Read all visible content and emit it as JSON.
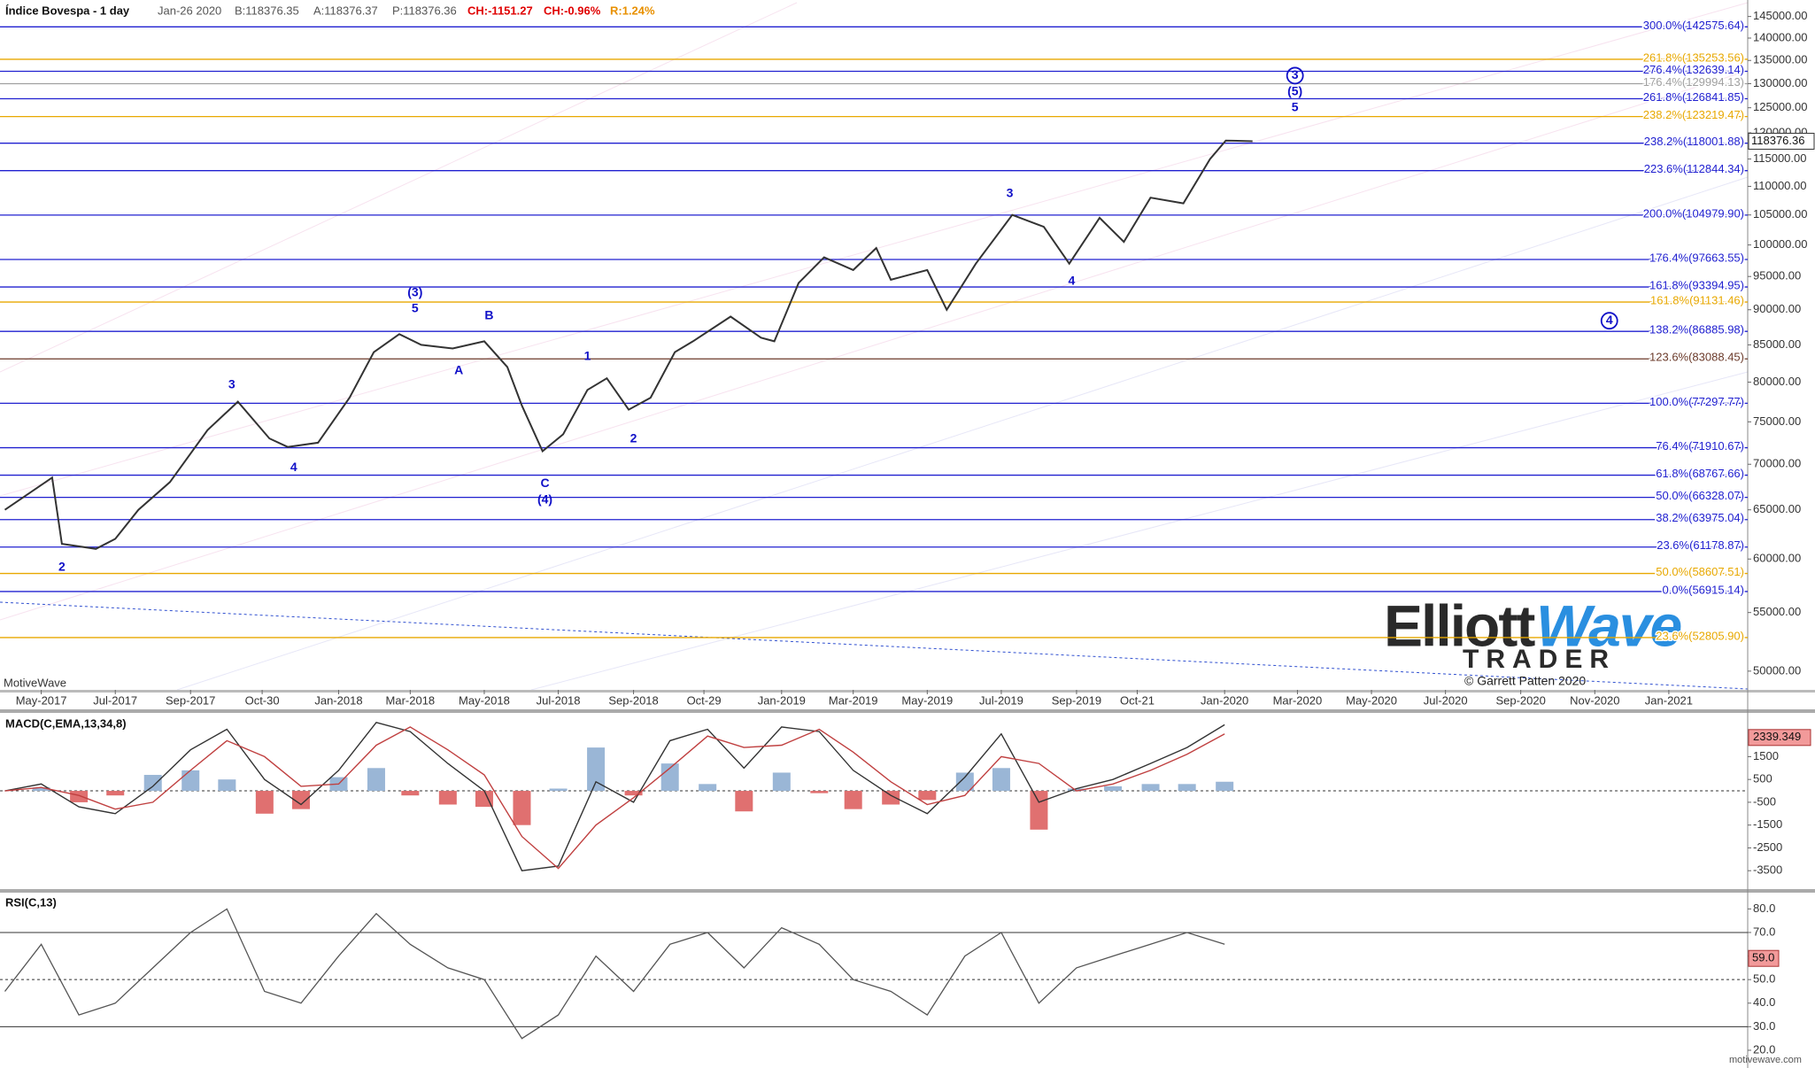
{
  "chart_data": [
    {
      "type": "price",
      "title": "Índice Bovespa - 1 day",
      "header": {
        "date": "Jan-26 2020",
        "bid": "B:118376.35",
        "ask": "A:118376.37",
        "price": "P:118376.36",
        "change": "CH:-1151.27",
        "change_pct": "CH:-0.96%",
        "range": "R:1.24%"
      },
      "color": "#333333",
      "log_scale": true,
      "x": [
        "2017-04-01",
        "2017-05-10",
        "2017-05-18",
        "2017-06-15",
        "2017-07-01",
        "2017-07-20",
        "2017-08-15",
        "2017-09-15",
        "2017-10-10",
        "2017-11-05",
        "2017-11-20",
        "2017-12-15",
        "2018-01-10",
        "2018-01-30",
        "2018-02-20",
        "2018-03-10",
        "2018-04-05",
        "2018-05-01",
        "2018-05-20",
        "2018-06-01",
        "2018-06-18",
        "2018-07-05",
        "2018-07-25",
        "2018-08-10",
        "2018-08-28",
        "2018-09-15",
        "2018-10-05",
        "2018-10-20",
        "2018-11-20",
        "2018-12-15",
        "2018-12-26",
        "2019-01-15",
        "2019-02-05",
        "2019-03-01",
        "2019-03-20",
        "2019-04-01",
        "2019-05-01",
        "2019-05-17",
        "2019-06-10",
        "2019-07-10",
        "2019-08-05",
        "2019-08-26",
        "2019-09-20",
        "2019-10-10",
        "2019-11-01",
        "2019-11-28",
        "2019-12-20",
        "2020-01-02",
        "2020-01-24"
      ],
      "values": [
        65000,
        68500,
        61500,
        61000,
        62000,
        65000,
        68000,
        74000,
        77500,
        73000,
        72000,
        72500,
        78000,
        84000,
        86500,
        85000,
        84500,
        85500,
        82000,
        77000,
        71500,
        73500,
        79000,
        80500,
        76500,
        78000,
        84000,
        85500,
        89000,
        86000,
        85500,
        94000,
        98000,
        96000,
        99500,
        94500,
        96000,
        90000,
        97000,
        105000,
        103000,
        97000,
        104500,
        100500,
        108000,
        107000,
        115000,
        118500,
        118376
      ],
      "last_value": 118376.36,
      "xlim": [
        "2017-03-28",
        "2021-03-07"
      ],
      "xticks": [
        {
          "value": "2017-05-01",
          "label": "May-2017"
        },
        {
          "value": "2017-07-01",
          "label": "Jul-2017"
        },
        {
          "value": "2017-09-01",
          "label": "Sep-2017"
        },
        {
          "value": "2017-10-30",
          "label": "Oct-30"
        },
        {
          "value": "2018-01-01",
          "label": "Jan-2018"
        },
        {
          "value": "2018-03-01",
          "label": "Mar-2018"
        },
        {
          "value": "2018-05-01",
          "label": "May-2018"
        },
        {
          "value": "2018-07-01",
          "label": "Jul-2018"
        },
        {
          "value": "2018-09-01",
          "label": "Sep-2018"
        },
        {
          "value": "2018-10-29",
          "label": "Oct-29"
        },
        {
          "value": "2019-01-01",
          "label": "Jan-2019"
        },
        {
          "value": "2019-03-01",
          "label": "Mar-2019"
        },
        {
          "value": "2019-05-01",
          "label": "May-2019"
        },
        {
          "value": "2019-07-01",
          "label": "Jul-2019"
        },
        {
          "value": "2019-09-01",
          "label": "Sep-2019"
        },
        {
          "value": "2019-10-21",
          "label": "Oct-21"
        },
        {
          "value": "2020-01-01",
          "label": "Jan-2020"
        },
        {
          "value": "2020-03-01",
          "label": "Mar-2020"
        },
        {
          "value": "2020-05-01",
          "label": "May-2020"
        },
        {
          "value": "2020-07-01",
          "label": "Jul-2020"
        },
        {
          "value": "2020-09-01",
          "label": "Sep-2020"
        },
        {
          "value": "2020-11-01",
          "label": "Nov-2020"
        },
        {
          "value": "2021-01-01",
          "label": "Jan-2021"
        }
      ],
      "ylim": [
        48500,
        148300
      ],
      "yticks": [
        {
          "value": 145000,
          "label": "145000.00"
        },
        {
          "value": 140000,
          "label": "140000.00"
        },
        {
          "value": 135000,
          "label": "135000.00"
        },
        {
          "value": 130000,
          "label": "130000.00"
        },
        {
          "value": 125000,
          "label": "125000.00"
        },
        {
          "value": 120000,
          "label": "120000.00"
        },
        {
          "value": 115000,
          "label": "115000.00"
        },
        {
          "value": 110000,
          "label": "110000.00"
        },
        {
          "value": 105000,
          "label": "105000.00"
        },
        {
          "value": 100000,
          "label": "100000.00"
        },
        {
          "value": 95000,
          "label": "95000.00"
        },
        {
          "value": 90000,
          "label": "90000.00"
        },
        {
          "value": 85000,
          "label": "85000.00"
        },
        {
          "value": 80000,
          "label": "80000.00"
        },
        {
          "value": 75000,
          "label": "75000.00"
        },
        {
          "value": 70000,
          "label": "70000.00"
        },
        {
          "value": 65000,
          "label": "65000.00"
        },
        {
          "value": 60000,
          "label": "60000.00"
        },
        {
          "value": 55000,
          "label": "55000.00"
        },
        {
          "value": 50000,
          "label": "50000.00"
        }
      ],
      "fib_levels": [
        {
          "value": 142575.64,
          "label": "300.0%(142575.64)",
          "color": "#2020d0"
        },
        {
          "value": 135253.56,
          "label": "261.8%(135253.56)",
          "color": "#e8a800"
        },
        {
          "value": 132639.14,
          "label": "276.4%(132639.14)",
          "color": "#2020d0"
        },
        {
          "value": 129994.13,
          "label": "176.4%(129994.13)",
          "color": "#a0a0a0"
        },
        {
          "value": 126841.85,
          "label": "261.8%(126841.85)",
          "color": "#2020d0"
        },
        {
          "value": 123219.47,
          "label": "238.2%(123219.47)",
          "color": "#e8a800"
        },
        {
          "value": 118001.88,
          "label": "238.2%(118001.88)",
          "color": "#2020d0"
        },
        {
          "value": 112844.34,
          "label": "223.6%(112844.34)",
          "color": "#2020d0"
        },
        {
          "value": 104979.9,
          "label": "200.0%(104979.90)",
          "color": "#2020d0"
        },
        {
          "value": 97663.55,
          "label": "176.4%(97663.55)",
          "color": "#2020d0"
        },
        {
          "value": 93394.95,
          "label": "161.8%(93394.95)",
          "color": "#2020d0"
        },
        {
          "value": 91131.46,
          "label": "161.8%(91131.46)",
          "color": "#e8a800"
        },
        {
          "value": 86885.98,
          "label": "138.2%(86885.98)",
          "color": "#2020d0"
        },
        {
          "value": 83088.45,
          "label": "123.6%(83088.45)",
          "color": "#6b3a2a"
        },
        {
          "value": 77297.77,
          "label": "100.0%(77297.77)",
          "color": "#2020d0"
        },
        {
          "value": 71910.67,
          "label": "76.4%(71910.67)",
          "color": "#2020d0"
        },
        {
          "value": 68767.66,
          "label": "61.8%(68767.66)",
          "color": "#2020d0"
        },
        {
          "value": 66328.07,
          "label": "50.0%(66328.07)",
          "color": "#2020d0"
        },
        {
          "value": 63975.04,
          "label": "38.2%(63975.04)",
          "color": "#2020d0"
        },
        {
          "value": 61178.87,
          "label": "23.6%(61178.87)",
          "color": "#2020d0"
        },
        {
          "value": 58607.51,
          "label": "50.0%(58607.51)",
          "color": "#e8a800"
        },
        {
          "value": 56915.14,
          "label": "0.0%(56915.14)",
          "color": "#2020d0"
        },
        {
          "value": 52805.9,
          "label": "23.6%(52805.90)",
          "color": "#e8a800"
        }
      ],
      "annotations": [
        {
          "text": "2",
          "x": "2017-05-18",
          "y": 59200,
          "circled": false
        },
        {
          "text": "3",
          "x": "2017-10-05",
          "y": 79600,
          "circled": false
        },
        {
          "text": "4",
          "x": "2017-11-25",
          "y": 69600,
          "circled": false
        },
        {
          "text": "(3)",
          "x": "2018-03-05",
          "y": 92500,
          "circled": false
        },
        {
          "text": "5",
          "x": "2018-03-05",
          "y": 90100,
          "circled": false
        },
        {
          "text": "A",
          "x": "2018-04-10",
          "y": 81500,
          "circled": false
        },
        {
          "text": "B",
          "x": "2018-05-05",
          "y": 89100,
          "circled": false
        },
        {
          "text": "C",
          "x": "2018-06-20",
          "y": 67800,
          "circled": false
        },
        {
          "text": "(4)",
          "x": "2018-06-20",
          "y": 66050,
          "circled": false
        },
        {
          "text": "1",
          "x": "2018-07-25",
          "y": 83400,
          "circled": false
        },
        {
          "text": "2",
          "x": "2018-09-01",
          "y": 72950,
          "circled": false
        },
        {
          "text": "3",
          "x": "2019-07-08",
          "y": 108700,
          "circled": false
        },
        {
          "text": "4",
          "x": "2019-08-28",
          "y": 94250,
          "circled": false
        },
        {
          "text": "3",
          "x": "2020-02-28",
          "y": 131700,
          "circled": true
        },
        {
          "text": "(5)",
          "x": "2020-02-28",
          "y": 128300,
          "circled": false
        },
        {
          "text": "5",
          "x": "2020-02-28",
          "y": 125000,
          "circled": false
        },
        {
          "text": "4",
          "x": "2020-11-13",
          "y": 88400,
          "circled": true
        }
      ],
      "annotation_color": "#1010c8",
      "platform": "MotiveWave",
      "logo": {
        "part1": "Elliott",
        "part2": "Wave",
        "part3": "TRADER"
      },
      "copyright": "© Garrett Patten 2020",
      "website": "motivewave.com"
    },
    {
      "type": "macd",
      "title": "MACD(C,EMA,13,34,8)",
      "x": [
        "2017-04-01",
        "2017-05-01",
        "2017-06-01",
        "2017-07-01",
        "2017-08-01",
        "2017-09-01",
        "2017-10-01",
        "2017-11-01",
        "2017-12-01",
        "2018-01-01",
        "2018-02-01",
        "2018-03-01",
        "2018-04-01",
        "2018-05-01",
        "2018-06-01",
        "2018-07-01",
        "2018-08-01",
        "2018-09-01",
        "2018-10-01",
        "2018-11-01",
        "2018-12-01",
        "2019-01-01",
        "2019-02-01",
        "2019-03-01",
        "2019-04-01",
        "2019-05-01",
        "2019-06-01",
        "2019-07-01",
        "2019-08-01",
        "2019-09-01",
        "2019-10-01",
        "2019-11-01",
        "2019-12-01",
        "2020-01-01"
      ],
      "macd": [
        0,
        300,
        -700,
        -1000,
        200,
        1800,
        2700,
        500,
        -600,
        900,
        3000,
        2600,
        1200,
        0,
        -3500,
        -3300,
        400,
        -500,
        2200,
        2700,
        1000,
        2800,
        2600,
        900,
        -200,
        -1000,
        600,
        2500,
        -500,
        100,
        500,
        1200,
        1900,
        2900
      ],
      "signal": [
        0,
        150,
        -200,
        -800,
        -500,
        900,
        2200,
        1500,
        200,
        300,
        2000,
        2800,
        1800,
        700,
        -2000,
        -3400,
        -1500,
        -300,
        1000,
        2400,
        1900,
        2000,
        2700,
        1700,
        400,
        -600,
        -200,
        1500,
        1200,
        0,
        300,
        900,
        1600,
        2500
      ],
      "histogram": [
        0,
        150,
        -500,
        -200,
        700,
        900,
        500,
        -1000,
        -800,
        600,
        1000,
        -200,
        -600,
        -700,
        -1500,
        100,
        1900,
        -200,
        1200,
        300,
        -900,
        800,
        -100,
        -800,
        -600,
        -400,
        800,
        1000,
        -1700,
        100,
        200,
        300,
        300,
        400
      ],
      "macd_color": "#333333",
      "signal_color": "#c04040",
      "positive_color": "#9ab6d6",
      "negative_color": "#e07070",
      "last_value": 2339.349,
      "xlim": [
        "2017-03-28",
        "2021-03-07"
      ],
      "ylim": [
        -4308,
        3419
      ],
      "yticks": [
        1500,
        500,
        -500,
        -1500,
        -2500,
        -3500
      ]
    },
    {
      "type": "rsi",
      "title": "RSI(C,13)",
      "x": [
        "2017-04-01",
        "2017-05-01",
        "2017-06-01",
        "2017-07-01",
        "2017-08-01",
        "2017-09-01",
        "2017-10-01",
        "2017-11-01",
        "2017-12-01",
        "2018-01-01",
        "2018-02-01",
        "2018-03-01",
        "2018-04-01",
        "2018-05-01",
        "2018-06-01",
        "2018-07-01",
        "2018-08-01",
        "2018-09-01",
        "2018-10-01",
        "2018-11-01",
        "2018-12-01",
        "2019-01-01",
        "2019-02-01",
        "2019-03-01",
        "2019-04-01",
        "2019-05-01",
        "2019-06-01",
        "2019-07-01",
        "2019-08-01",
        "2019-09-01",
        "2019-10-01",
        "2019-11-01",
        "2019-12-01",
        "2020-01-01"
      ],
      "values": [
        45,
        65,
        35,
        40,
        55,
        70,
        80,
        45,
        40,
        60,
        78,
        65,
        55,
        50,
        25,
        35,
        60,
        45,
        65,
        70,
        55,
        72,
        65,
        50,
        45,
        35,
        60,
        70,
        40,
        55,
        60,
        65,
        70,
        65
      ],
      "color": "#555555",
      "last_value": {
        "value": 59,
        "label": "59.0"
      },
      "xlim": [
        "2017-03-28",
        "2021-03-07"
      ],
      "ylim": [
        13.6,
        86.9
      ],
      "yticks": [
        {
          "value": 80,
          "label": "80.0"
        },
        {
          "value": 70,
          "label": "70.0"
        },
        {
          "value": 60,
          "label": "60.0"
        },
        {
          "value": 50,
          "label": "50.0"
        },
        {
          "value": 40,
          "label": "40.0"
        },
        {
          "value": 30,
          "label": "30.0"
        },
        {
          "value": 20,
          "label": "20.0"
        }
      ]
    }
  ]
}
